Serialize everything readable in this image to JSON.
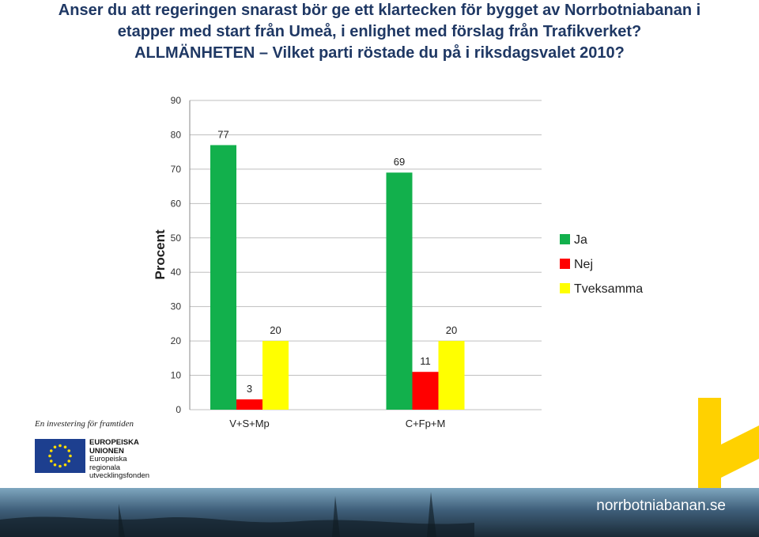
{
  "title": {
    "line1": "Anser du att regeringen snarast bör ge ett klartecken för bygget av Norrbotniabanan i",
    "line2": "etapper med start från Umeå, i enlighet med förslag från Trafikverket?",
    "line3": "ALLMÄNHETEN – Vilket parti röstade du på i riksdagsvalet 2010?"
  },
  "chart_data": {
    "type": "bar",
    "categories": [
      "V+S+Mp",
      "C+Fp+M"
    ],
    "series": [
      {
        "name": "Ja",
        "values": [
          77,
          69
        ],
        "color": "#12b04c"
      },
      {
        "name": "Nej",
        "values": [
          3,
          11
        ],
        "color": "#ff0000"
      },
      {
        "name": "Tveksamma",
        "values": [
          20,
          20
        ],
        "color": "#ffff00"
      }
    ],
    "ylabel": "Procent",
    "ylim": [
      0,
      90
    ],
    "yticks": [
      0,
      10,
      20,
      30,
      40,
      50,
      60,
      70,
      80,
      90
    ],
    "grid": true,
    "legend": "right"
  },
  "footer": {
    "eu_tagline": "En investering för framtiden",
    "eu_lines": [
      "EUROPEISKA",
      "UNIONEN",
      "Europeiska",
      "regionala",
      "utvecklingsfonden"
    ],
    "brand": "norrbotniabanan.se",
    "brand_color": "#ffd100"
  }
}
